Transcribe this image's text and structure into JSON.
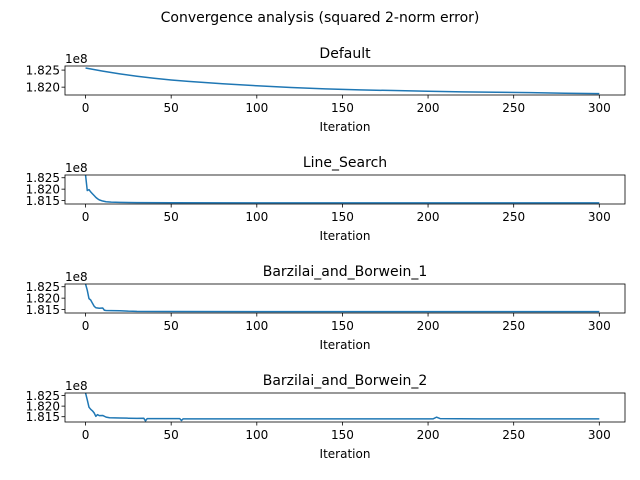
{
  "suptitle": "Convergence analysis (squared 2-norm error)",
  "chart_data": [
    {
      "type": "line",
      "title": "Default",
      "xlabel": "Iteration",
      "offset_label": "1e8",
      "xlim": [
        -12,
        315
      ],
      "ylim": [
        181.77,
        182.62
      ],
      "xticks": [
        0,
        50,
        100,
        150,
        200,
        250,
        300
      ],
      "xtick_labels": [
        "0",
        "50",
        "100",
        "150",
        "200",
        "250",
        "300"
      ],
      "yticks": [
        182.0,
        182.5
      ],
      "ytick_labels": [
        "1.820",
        "1.825"
      ],
      "series": [
        {
          "color": "#1f77b4",
          "x": [
            0,
            10,
            20,
            30,
            40,
            50,
            60,
            80,
            100,
            120,
            140,
            160,
            180,
            200,
            220,
            240,
            260,
            280,
            300
          ],
          "y": [
            182.56,
            182.47,
            182.39,
            182.32,
            182.26,
            182.21,
            182.17,
            182.1,
            182.04,
            181.99,
            181.95,
            181.92,
            181.9,
            181.88,
            181.86,
            181.85,
            181.84,
            181.82,
            181.81
          ]
        }
      ]
    },
    {
      "type": "line",
      "title": "Line_Search",
      "xlabel": "Iteration",
      "offset_label": "1e8",
      "xlim": [
        -12,
        315
      ],
      "ylim": [
        181.35,
        182.62
      ],
      "xticks": [
        0,
        50,
        100,
        150,
        200,
        250,
        300
      ],
      "xtick_labels": [
        "0",
        "50",
        "100",
        "150",
        "200",
        "250",
        "300"
      ],
      "yticks": [
        181.5,
        182.0,
        182.5
      ],
      "ytick_labels": [
        "1.815",
        "1.820",
        "1.825"
      ],
      "series": [
        {
          "color": "#1f77b4",
          "x": [
            0,
            1,
            2,
            3,
            4,
            5,
            6,
            7,
            8,
            10,
            12,
            15,
            20,
            30,
            50,
            100,
            150,
            200,
            250,
            300
          ],
          "y": [
            182.62,
            181.94,
            181.98,
            181.88,
            181.8,
            181.72,
            181.64,
            181.58,
            181.53,
            181.48,
            181.45,
            181.43,
            181.42,
            181.41,
            181.405,
            181.4,
            181.4,
            181.4,
            181.4,
            181.4
          ]
        }
      ]
    },
    {
      "type": "line",
      "title": "Barzilai_and_Borwein_1",
      "xlabel": "Iteration",
      "offset_label": "1e8",
      "xlim": [
        -12,
        315
      ],
      "ylim": [
        181.35,
        182.62
      ],
      "xticks": [
        0,
        50,
        100,
        150,
        200,
        250,
        300
      ],
      "xtick_labels": [
        "0",
        "50",
        "100",
        "150",
        "200",
        "250",
        "300"
      ],
      "yticks": [
        181.5,
        182.0,
        182.5
      ],
      "ytick_labels": [
        "1.815",
        "1.820",
        "1.825"
      ],
      "series": [
        {
          "color": "#1f77b4",
          "x": [
            0,
            1,
            2,
            3,
            4,
            5,
            6,
            8,
            10,
            11,
            12,
            15,
            20,
            25,
            30,
            50,
            100,
            150,
            200,
            250,
            300
          ],
          "y": [
            182.62,
            182.35,
            181.98,
            181.92,
            181.78,
            181.65,
            181.58,
            181.56,
            181.57,
            181.47,
            181.46,
            181.455,
            181.45,
            181.43,
            181.42,
            181.415,
            181.41,
            181.41,
            181.41,
            181.41,
            181.41
          ]
        }
      ]
    },
    {
      "type": "line",
      "title": "Barzilai_and_Borwein_2",
      "xlabel": "Iteration",
      "offset_label": "1e8",
      "xlim": [
        -12,
        315
      ],
      "ylim": [
        181.25,
        182.62
      ],
      "xticks": [
        0,
        50,
        100,
        150,
        200,
        250,
        300
      ],
      "xtick_labels": [
        "0",
        "50",
        "100",
        "150",
        "200",
        "250",
        "300"
      ],
      "yticks": [
        181.5,
        182.0,
        182.5
      ],
      "ytick_labels": [
        "1.815",
        "1.820",
        "1.825"
      ],
      "series": [
        {
          "color": "#1f77b4",
          "x": [
            0,
            1,
            2,
            3,
            4,
            5,
            6,
            7,
            8,
            10,
            12,
            14,
            20,
            25,
            30,
            34,
            35,
            36,
            45,
            55,
            56,
            57,
            80,
            120,
            160,
            203,
            205,
            207,
            230,
            260,
            300
          ],
          "y": [
            182.62,
            182.3,
            181.95,
            181.85,
            181.78,
            181.68,
            181.52,
            181.6,
            181.55,
            181.56,
            181.48,
            181.45,
            181.44,
            181.43,
            181.42,
            181.43,
            181.3,
            181.41,
            181.41,
            181.41,
            181.32,
            181.4,
            181.4,
            181.4,
            181.4,
            181.4,
            181.48,
            181.41,
            181.4,
            181.4,
            181.4
          ]
        }
      ]
    }
  ]
}
